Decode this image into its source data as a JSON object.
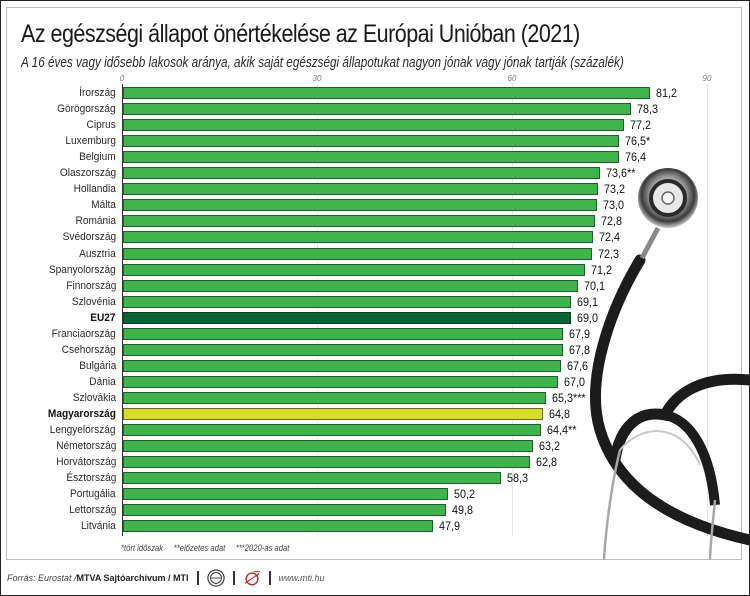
{
  "title": "Az egészségi állapot önértékelése az Európai Unióban (2021)",
  "subtitle": "A 16 éves vagy idősebb lakosok aránya, akik saját egészségi állapotukat nagyon jónak vagy jónak tartják (százalék)",
  "colors": {
    "bar_default": "#3db54a",
    "bar_eu27": "#0a6335",
    "bar_hungary": "#d9dd29"
  },
  "chart_data": {
    "type": "bar",
    "orientation": "horizontal",
    "title": "Az egészségi állapot önértékelése az Európai Unióban (2021)",
    "subtitle": "A 16 éves vagy idősebb lakosok aránya, akik saját egészségi állapotukat nagyon jónak vagy jónak tartják (százalék)",
    "xlabel": "",
    "ylabel": "",
    "xlim": [
      0,
      90
    ],
    "xticks": [
      "0",
      "30",
      "60",
      "90"
    ],
    "grid": true,
    "legend": "none",
    "categories": [
      "Írország",
      "Görögország",
      "Ciprus",
      "Luxemburg",
      "Belgium",
      "Olaszország",
      "Hollandia",
      "Málta",
      "Románia",
      "Svédország",
      "Ausztria",
      "Spanyolország",
      "Finnország",
      "Szlovénia",
      "EU27",
      "Franciaország",
      "Csehország",
      "Bulgária",
      "Dánia",
      "Szlovákia",
      "Magyarország",
      "Lengyelország",
      "Németország",
      "Horvátország",
      "Észtország",
      "Portugália",
      "Lettország",
      "Litvánia"
    ],
    "values": [
      81.2,
      78.3,
      77.2,
      76.5,
      76.4,
      73.6,
      73.2,
      73.0,
      72.8,
      72.4,
      72.3,
      71.2,
      70.1,
      69.1,
      69.0,
      67.9,
      67.8,
      67.6,
      67.0,
      65.3,
      64.8,
      64.4,
      63.2,
      62.8,
      58.3,
      50.2,
      49.8,
      47.9
    ],
    "value_labels": [
      "81,2",
      "78,3",
      "77,2",
      "76,5*",
      "76,4",
      "73,6**",
      "73,2",
      "73,0",
      "72,8",
      "72,4",
      "72,3",
      "71,2",
      "70,1",
      "69,1",
      "69,0",
      "67,9",
      "67,8",
      "67,6",
      "67,0",
      "65,3***",
      "64,8",
      "64,4**",
      "63,2",
      "62,8",
      "58,3",
      "50,2",
      "49,8",
      "47,9"
    ],
    "highlight": {
      "EU27": "eu",
      "Magyarország": "hu"
    },
    "annotations": [
      "*tört időszak",
      "**előzetes adat",
      "***2020-as adat"
    ]
  },
  "footnotes": [
    "*tört időszak",
    "**előzetes adat",
    "***2020-as adat"
  ],
  "footer": {
    "source_prefix": "Forrás: Eurostat / ",
    "source_bold": "MTVA Sajtóarchívum / MTI",
    "url": "www.mti.hu",
    "logo1_icon": "mtva-logo-icon",
    "logo2_icon": "mti-logo-icon"
  }
}
